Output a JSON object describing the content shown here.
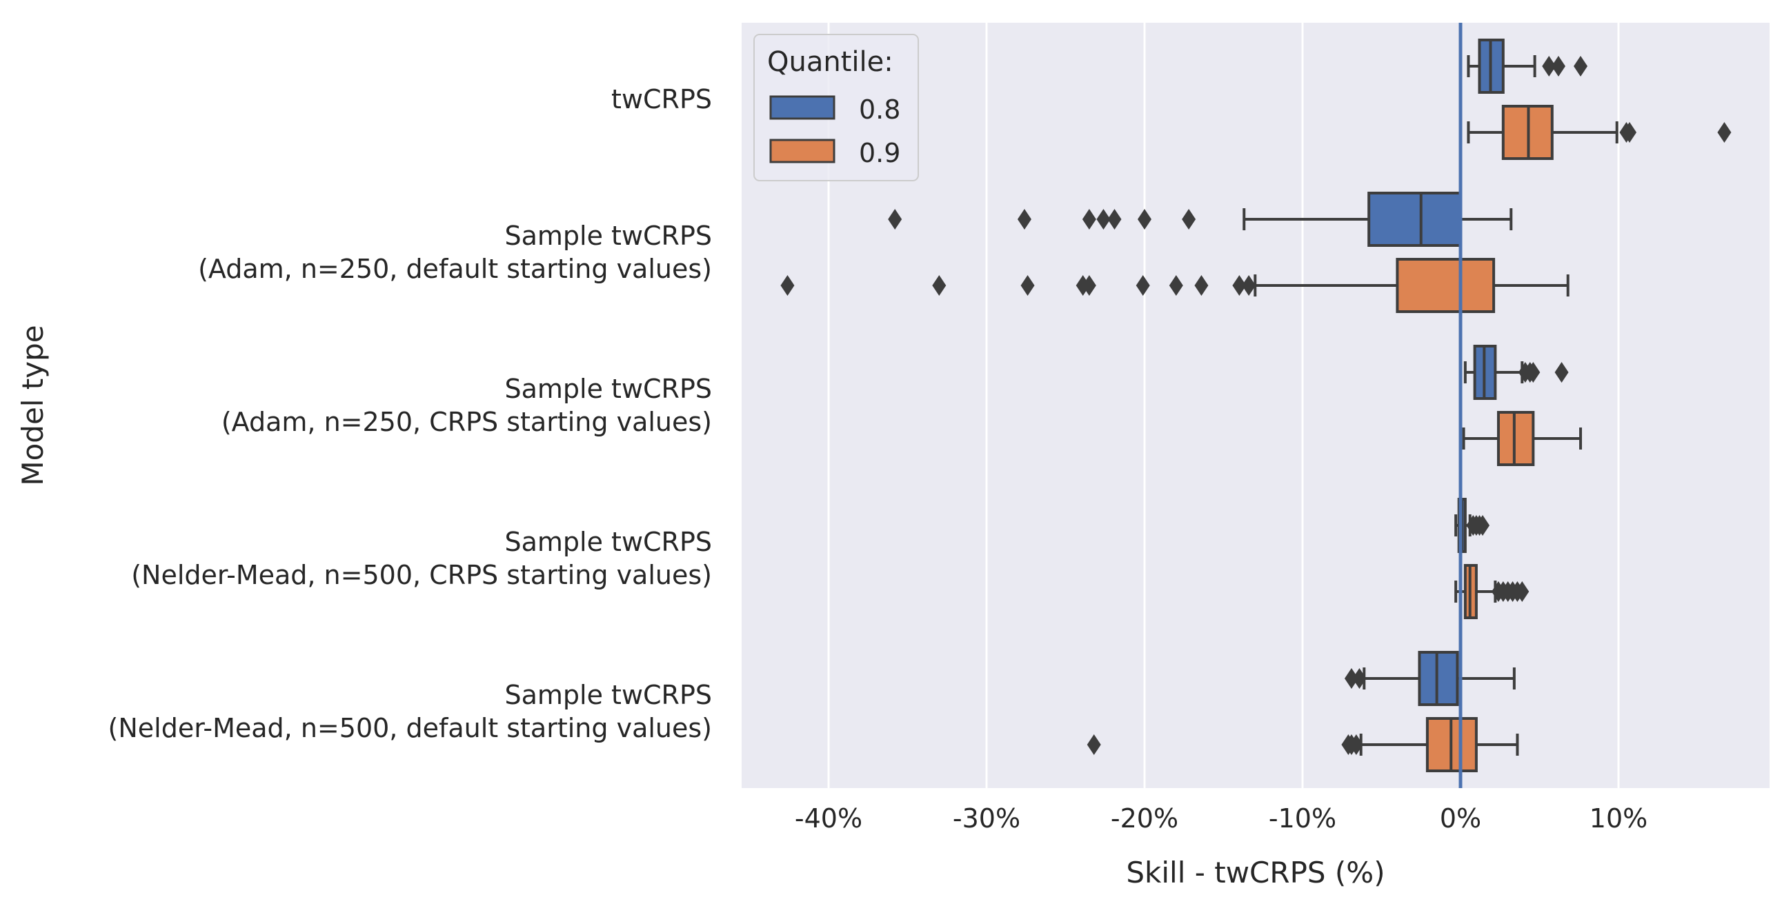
{
  "chart_data": {
    "type": "boxplot",
    "orientation": "horizontal",
    "xlabel": "Skill - twCRPS (%)",
    "ylabel": "Model type",
    "xlim": [
      -45.5,
      19.5
    ],
    "x_ticks": [
      -40,
      -30,
      -20,
      -10,
      0,
      10
    ],
    "x_tick_labels": [
      "-40%",
      "-30%",
      "-20%",
      "-10%",
      "0%",
      "10%"
    ],
    "grid": true,
    "reference_line_x": 0,
    "legend": {
      "title": "Quantile:",
      "position": "top-left",
      "entries": [
        {
          "label": "0.8",
          "color": "#4c72b0"
        },
        {
          "label": "0.9",
          "color": "#dd8452"
        }
      ]
    },
    "categories": [
      [
        "twCRPS"
      ],
      [
        "Sample twCRPS",
        "(Adam, n=250, default starting values)"
      ],
      [
        "Sample twCRPS",
        "(Adam, n=250, CRPS starting values)"
      ],
      [
        "Sample twCRPS",
        "(Nelder-Mead, n=500, CRPS starting values)"
      ],
      [
        "Sample twCRPS",
        "(Nelder-Mead, n=500, default starting values)"
      ]
    ],
    "series": [
      {
        "name": "0.8",
        "color": "#4c72b0",
        "boxes": [
          {
            "whislo": 0.5,
            "q1": 1.2,
            "med": 1.9,
            "q3": 2.7,
            "whishi": 4.7,
            "fliers": [
              5.6,
              6.2,
              7.6
            ]
          },
          {
            "whislo": -13.7,
            "q1": -5.8,
            "med": -2.5,
            "q3": 0.0,
            "whishi": 3.2,
            "fliers": [
              -35.8,
              -27.6,
              -23.5,
              -22.6,
              -21.9,
              -20.0,
              -17.2
            ]
          },
          {
            "whislo": 0.3,
            "q1": 0.9,
            "med": 1.5,
            "q3": 2.2,
            "whishi": 3.9,
            "fliers": [
              4.1,
              4.4,
              4.6,
              6.4
            ]
          },
          {
            "whislo": -0.3,
            "q1": -0.1,
            "med": 0.1,
            "q3": 0.3,
            "whishi": 0.6,
            "fliers": [
              0.8,
              1.0,
              1.2,
              1.4
            ]
          },
          {
            "whislo": -6.1,
            "q1": -2.6,
            "med": -1.5,
            "q3": -0.2,
            "whishi": 3.4,
            "fliers": [
              -6.4,
              -6.9
            ]
          }
        ]
      },
      {
        "name": "0.9",
        "color": "#dd8452",
        "boxes": [
          {
            "whislo": 0.5,
            "q1": 2.7,
            "med": 4.3,
            "q3": 5.8,
            "whishi": 9.9,
            "fliers": [
              10.5,
              10.7,
              16.7
            ]
          },
          {
            "whislo": -13.0,
            "q1": -4.0,
            "med": 0.0,
            "q3": 2.1,
            "whishi": 6.8,
            "fliers": [
              -42.6,
              -33.0,
              -27.4,
              -23.9,
              -23.5,
              -20.1,
              -18.0,
              -16.4,
              -14.0,
              -13.4
            ]
          },
          {
            "whislo": 0.2,
            "q1": 2.4,
            "med": 3.4,
            "q3": 4.6,
            "whishi": 7.6,
            "fliers": []
          },
          {
            "whislo": -0.3,
            "q1": 0.3,
            "med": 0.6,
            "q3": 1.0,
            "whishi": 2.2,
            "fliers": [
              2.4,
              2.7,
              3.0,
              3.3,
              3.6,
              3.9
            ]
          },
          {
            "whislo": -6.3,
            "q1": -2.1,
            "med": -0.6,
            "q3": 1.0,
            "whishi": 3.6,
            "fliers": [
              -6.6,
              -6.9,
              -7.1,
              -23.2
            ]
          }
        ]
      }
    ]
  }
}
